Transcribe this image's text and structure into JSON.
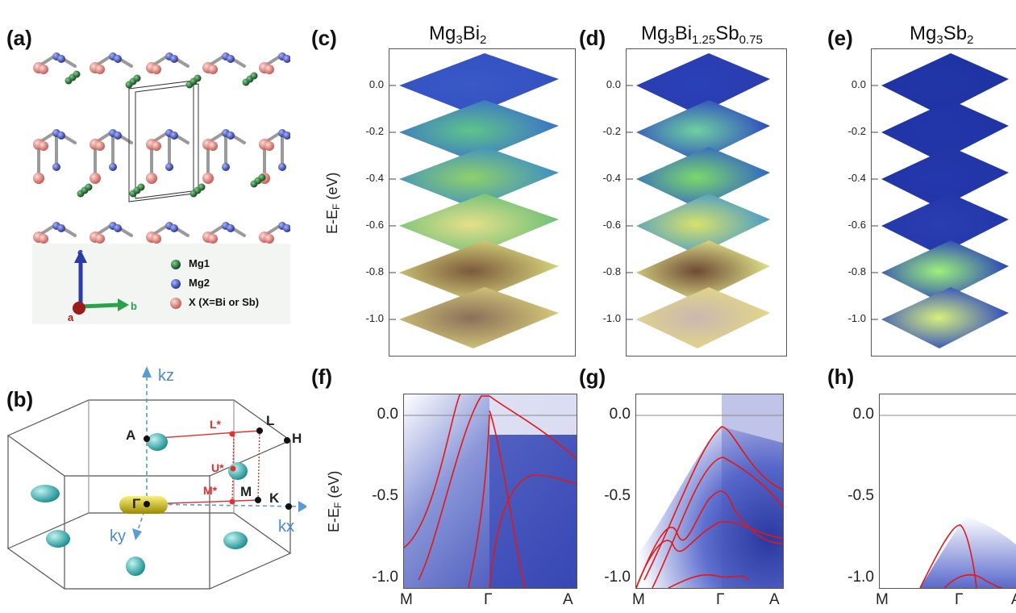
{
  "panel_labels": {
    "a": "(a)",
    "b": "(b)",
    "c": "(c)",
    "d": "(d)",
    "e": "(e)",
    "f": "(f)",
    "g": "(g)",
    "h": "(h)"
  },
  "titles": {
    "c": {
      "base": "Mg",
      "s1": "3",
      "mid": "Bi",
      "s2": "2",
      "tail": "",
      "s3": ""
    },
    "d": {
      "base": "Mg",
      "s1": "3",
      "mid": "Bi",
      "s2": "1.25",
      "tail": "Sb",
      "s3": "0.75"
    },
    "e": {
      "base": "Mg",
      "s1": "3",
      "mid": "Sb",
      "s2": "2",
      "tail": "",
      "s3": ""
    }
  },
  "axis": {
    "ylabel_main": "E-E",
    "ylabel_sub": "F",
    "ylabel_unit": " (eV)"
  },
  "stack_ticks": [
    "0.0",
    "-0.2",
    "-0.4",
    "-0.6",
    "-0.8",
    "-1.0"
  ],
  "band_ticks": [
    "0.0",
    "-0.5",
    "-1.0"
  ],
  "k_labels": [
    "M",
    "Γ",
    "A"
  ],
  "legend": {
    "c": "c",
    "a": "a",
    "b": "b",
    "mg1": "Mg1",
    "mg2": "Mg2",
    "x": "X (X=Bi or Sb)"
  },
  "bz_labels": {
    "kz": "kz",
    "kx": "kx",
    "ky": "ky",
    "A": "A",
    "L": "L",
    "H": "H",
    "K": "K",
    "M": "M",
    "Gamma": "Γ",
    "Lstar": "L*",
    "Ustar": "U*",
    "Mstar": "M*"
  },
  "colors": {
    "atom_mg1": "#1f6b2a",
    "atom_mg2": "#3a4fb8",
    "atom_x": "#e08a84",
    "band_line": "#e01818",
    "arpes_blue": "#2a3db8",
    "pocket_cyan": "#33c3c3",
    "pocket_yellow": "#e0d21a"
  }
}
